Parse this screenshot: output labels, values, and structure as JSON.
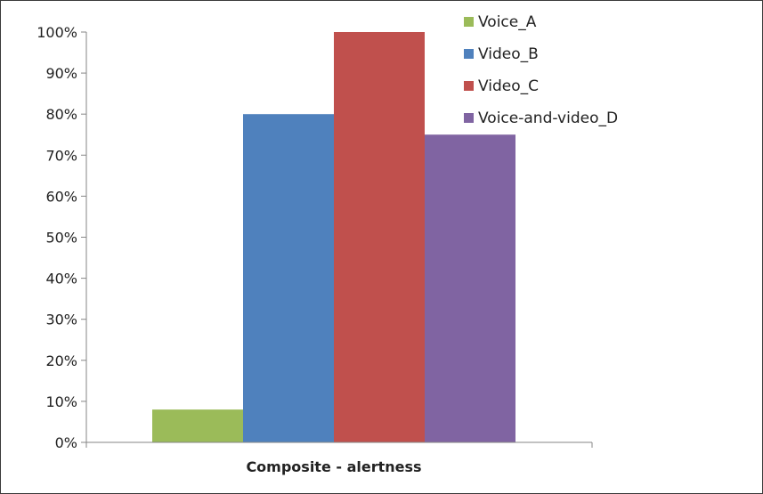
{
  "chart_data": {
    "type": "bar",
    "categories": [
      "Composite - alertness"
    ],
    "series": [
      {
        "name": "Voice_A",
        "values": [
          0.08
        ],
        "color": "#9BBB59"
      },
      {
        "name": "Video_B",
        "values": [
          0.8
        ],
        "color": "#4F81BD"
      },
      {
        "name": "Video_C",
        "values": [
          1.0
        ],
        "color": "#C0504D"
      },
      {
        "name": "Voice-and-video_D",
        "values": [
          0.75
        ],
        "color": "#8064A2"
      }
    ],
    "y_ticks": [
      "0%",
      "10%",
      "20%",
      "30%",
      "40%",
      "50%",
      "60%",
      "70%",
      "80%",
      "90%",
      "100%"
    ],
    "ylim": [
      0,
      1
    ],
    "y_format": "percent",
    "grid": false,
    "legend_position": "top-right"
  }
}
